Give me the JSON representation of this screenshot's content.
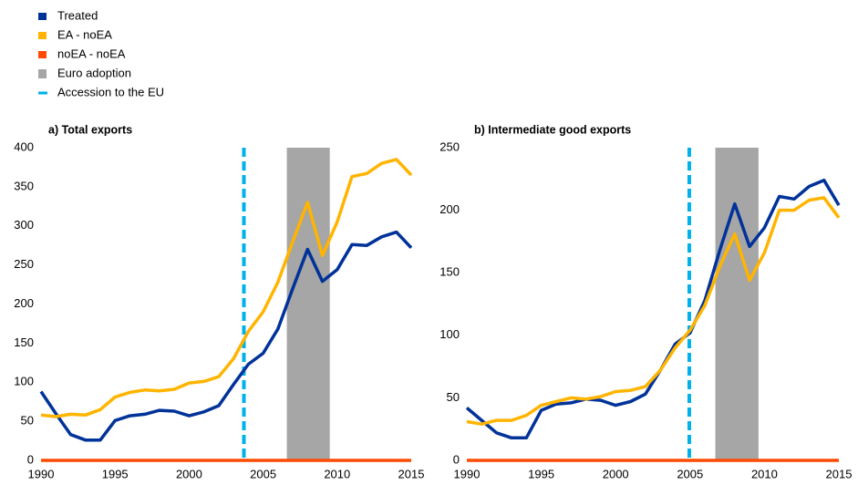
{
  "chart_data": [
    {
      "type": "line",
      "title": "a) Total exports",
      "x": [
        1990,
        1991,
        1992,
        1993,
        1994,
        1995,
        1996,
        1997,
        1998,
        1999,
        2000,
        2001,
        2002,
        2003,
        2004,
        2005,
        2006,
        2007,
        2008,
        2009,
        2010,
        2011,
        2012,
        2013,
        2014,
        2015
      ],
      "xlim": [
        1990,
        2015
      ],
      "xticks": [
        1990,
        1995,
        2000,
        2005,
        2010,
        2015
      ],
      "ylim": [
        0,
        400
      ],
      "yticks": [
        0,
        50,
        100,
        150,
        200,
        250,
        300,
        350,
        400
      ],
      "grid": false,
      "shade": {
        "label": "Euro adoption",
        "color": "#a6a6a6",
        "x": [
          2006.6,
          2009.5
        ]
      },
      "vline": {
        "label": "Accession to the EU",
        "color": "#00b1ea",
        "x": 2003.7
      },
      "series": [
        {
          "name": "Treated",
          "color": "#003299",
          "values": [
            88,
            60,
            33,
            26,
            26,
            51,
            57,
            59,
            64,
            63,
            57,
            62,
            70,
            97,
            123,
            137,
            168,
            220,
            270,
            229,
            244,
            276,
            275,
            286,
            292,
            272
          ]
        },
        {
          "name": "EA - noEA",
          "color": "#ffb400",
          "values": [
            58,
            56,
            59,
            58,
            65,
            81,
            87,
            90,
            89,
            91,
            99,
            101,
            107,
            130,
            165,
            190,
            228,
            280,
            330,
            262,
            305,
            363,
            367,
            380,
            385,
            365
          ]
        },
        {
          "name": "noEA - noEA",
          "color": "#ff4b00",
          "values": [
            0,
            0,
            0,
            0,
            0,
            0,
            0,
            0,
            0,
            0,
            0,
            0,
            0,
            0,
            0,
            0,
            0,
            0,
            0,
            0,
            0,
            0,
            0,
            0,
            0,
            0
          ]
        }
      ]
    },
    {
      "type": "line",
      "title": "b) Intermediate good exports",
      "x": [
        1990,
        1991,
        1992,
        1993,
        1994,
        1995,
        1996,
        1997,
        1998,
        1999,
        2000,
        2001,
        2002,
        2003,
        2004,
        2005,
        2006,
        2007,
        2008,
        2009,
        2010,
        2011,
        2012,
        2013,
        2014,
        2015
      ],
      "xlim": [
        1990,
        2015
      ],
      "xticks": [
        1990,
        1995,
        2000,
        2005,
        2010,
        2015
      ],
      "ylim": [
        0,
        250
      ],
      "yticks": [
        0,
        50,
        100,
        150,
        200,
        250
      ],
      "grid": false,
      "shade": {
        "color": "#a6a6a6",
        "x": [
          2006.7,
          2009.6
        ]
      },
      "vline": {
        "color": "#00b1ea",
        "x": 2004.95
      },
      "series": [
        {
          "color": "#003299",
          "values": [
            42,
            32,
            22,
            18,
            18,
            40,
            45,
            46,
            49,
            48,
            44,
            47,
            53,
            72,
            93,
            102,
            128,
            168,
            205,
            171,
            186,
            211,
            209,
            219,
            224,
            204
          ]
        },
        {
          "color": "#ffb400",
          "values": [
            31,
            29,
            32,
            32,
            36,
            44,
            47,
            50,
            49,
            51,
            55,
            56,
            59,
            72,
            90,
            104,
            124,
            155,
            181,
            144,
            166,
            200,
            200,
            208,
            210,
            194
          ]
        },
        {
          "color": "#ff4b00",
          "values": [
            0,
            0,
            0,
            0,
            0,
            0,
            0,
            0,
            0,
            0,
            0,
            0,
            0,
            0,
            0,
            0,
            0,
            0,
            0,
            0,
            0,
            0,
            0,
            0,
            0,
            0
          ]
        }
      ]
    }
  ]
}
